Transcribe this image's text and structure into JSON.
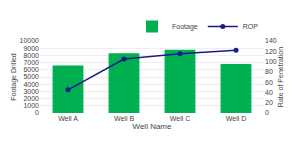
{
  "chart_data": {
    "type": "bar",
    "xlabel": "Well Name",
    "ylabel": "Footage Drilled",
    "y2label": "Rate of Penetration",
    "categories": [
      "Well A",
      "Well B",
      "Well C",
      "Well D"
    ],
    "series": [
      {
        "name": "Footage",
        "type": "bar",
        "color": "#00b050",
        "values": [
          6600,
          8300,
          8800,
          6800
        ]
      },
      {
        "name": "ROP",
        "type": "line",
        "axis": "y2",
        "color": "#1a1a8c",
        "marker": "circle",
        "values": [
          45,
          105,
          115,
          122
        ]
      }
    ],
    "ylim": [
      0,
      10000
    ],
    "yticks": [
      0,
      1000,
      2000,
      3000,
      4000,
      5000,
      6000,
      7000,
      8000,
      9000,
      10000
    ],
    "y2lim": [
      0,
      140
    ],
    "y2ticks": [
      0,
      20,
      40,
      60,
      80,
      100,
      120,
      140
    ],
    "grid": true,
    "legend": "upper right"
  }
}
